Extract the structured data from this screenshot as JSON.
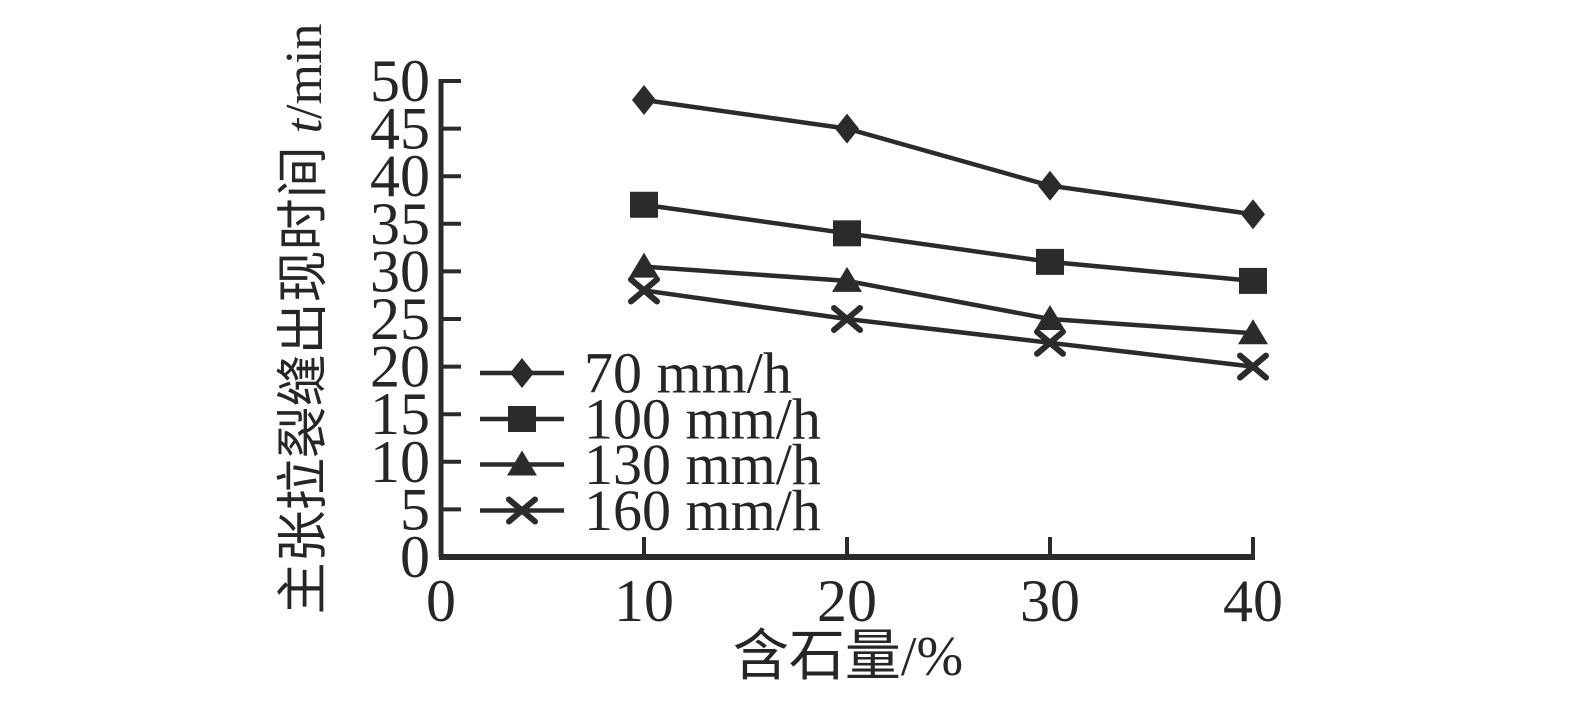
{
  "chart_data": {
    "type": "line",
    "title": "",
    "xlabel": "含石量/%",
    "ylabel": "主张拉裂缝出现时间 t/min",
    "ylabel_parts": {
      "prefix": "主张拉裂缝出现时间 ",
      "italic": "t",
      "suffix": "/min"
    },
    "x": [
      10,
      20,
      30,
      40
    ],
    "xlim": [
      0,
      40
    ],
    "ylim": [
      0,
      50
    ],
    "x_ticks": [
      0,
      10,
      20,
      30,
      40
    ],
    "y_ticks": [
      0,
      5,
      10,
      15,
      20,
      25,
      30,
      35,
      40,
      45,
      50
    ],
    "grid": false,
    "legend_position": "inside lower-left",
    "line_color": "#2b2b2b",
    "text_color": "#262626",
    "background_color": "#ffffff",
    "series": [
      {
        "name": "70 mm/h",
        "marker": "diamond",
        "marker_icon": "diamond-marker-icon",
        "values": [
          48,
          45,
          39,
          36
        ]
      },
      {
        "name": "100 mm/h",
        "marker": "square",
        "marker_icon": "square-marker-icon",
        "values": [
          37,
          34,
          31,
          29
        ]
      },
      {
        "name": "130 mm/h",
        "marker": "triangle",
        "marker_icon": "triangle-marker-icon",
        "values": [
          30.5,
          29,
          25,
          23.5
        ]
      },
      {
        "name": "160 mm/h",
        "marker": "x",
        "marker_icon": "x-marker-icon",
        "values": [
          28,
          25,
          22.5,
          20
        ]
      }
    ]
  }
}
